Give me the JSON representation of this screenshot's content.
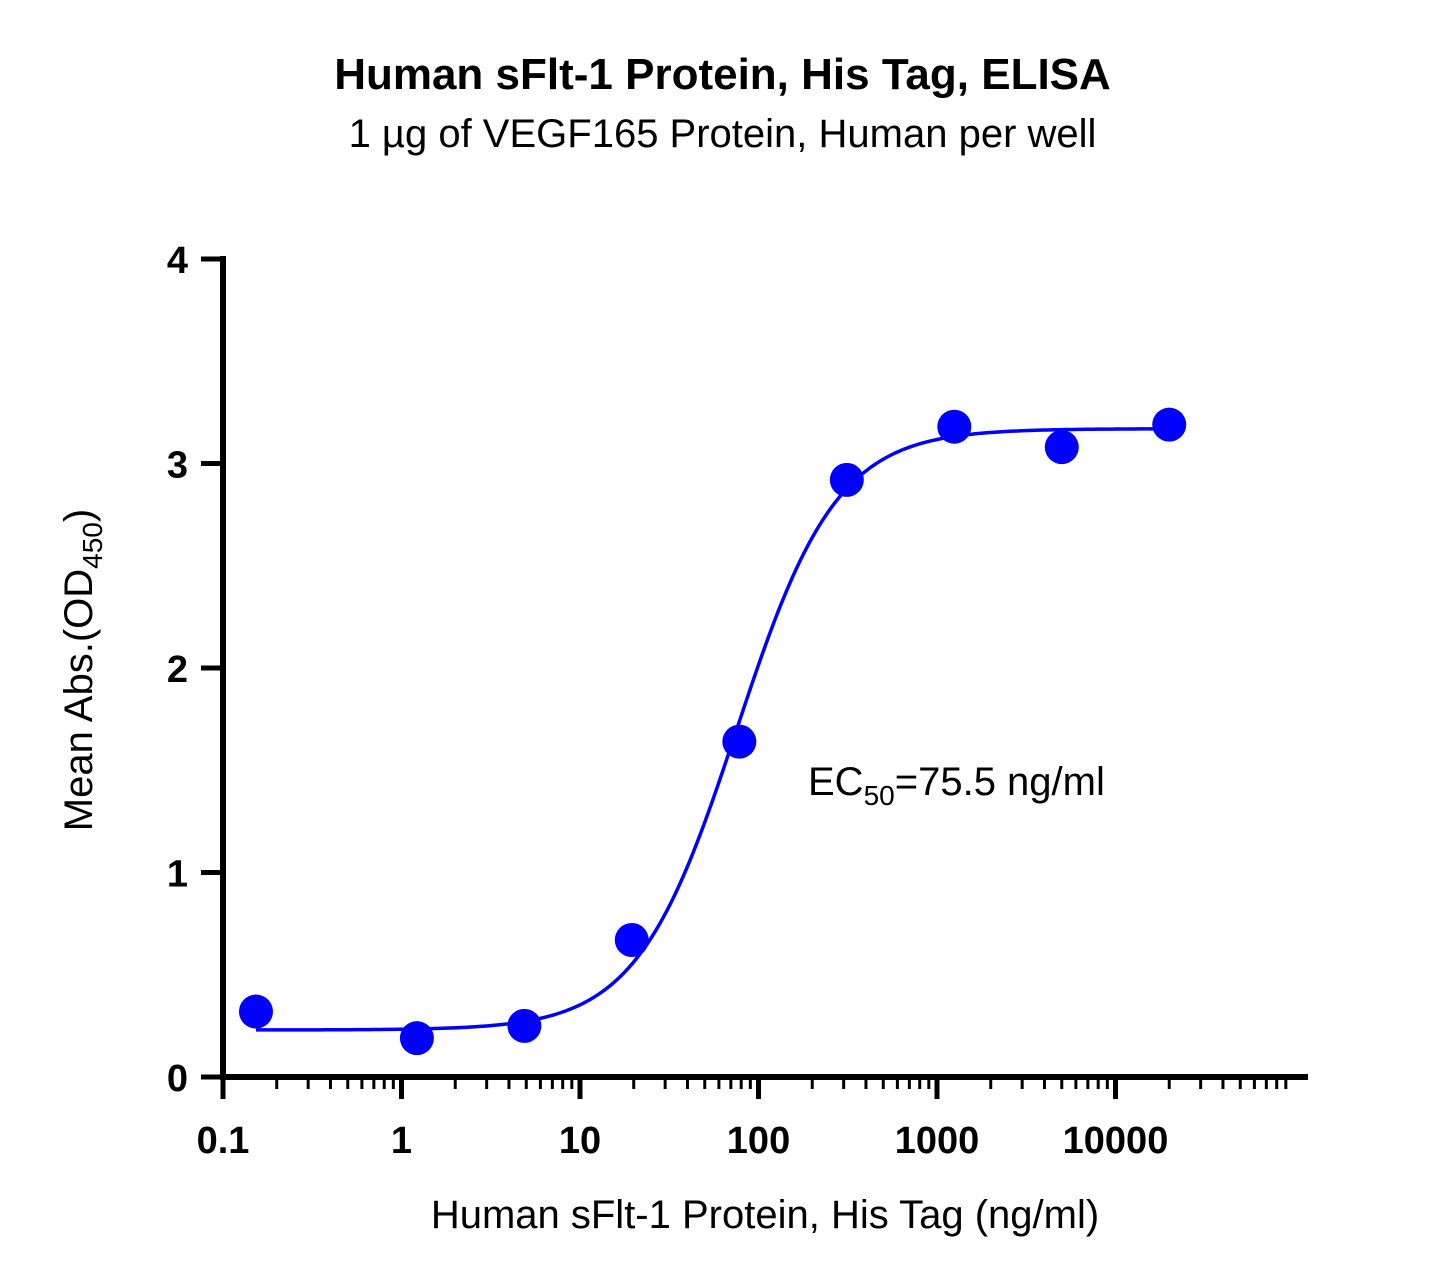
{
  "chart_data": {
    "type": "scatter",
    "title": "Human sFlt-1 Protein, His Tag, ELISA",
    "subtitle": "1 µg of VEGF165 Protein, Human per well",
    "xlabel": "Human sFlt-1 Protein, His Tag (ng/ml)",
    "ylabel": {
      "main": "Mean Abs.(OD",
      "sub": "450",
      "end": ")"
    },
    "x_scale": "log",
    "xlim": [
      0.1,
      100000
    ],
    "ylim": [
      0,
      4
    ],
    "x_ticks": [
      "0.1",
      "1",
      "10",
      "100",
      "1000",
      "10000"
    ],
    "x_tick_values": [
      0.1,
      1,
      10,
      100,
      1000,
      10000
    ],
    "y_ticks": [
      "0",
      "1",
      "2",
      "3",
      "4"
    ],
    "y_tick_values": [
      0,
      1,
      2,
      3,
      4
    ],
    "grid": false,
    "series": [
      {
        "color": "#0000ff",
        "points": [
          {
            "x": 0.153,
            "y": 0.32
          },
          {
            "x": 1.22,
            "y": 0.19
          },
          {
            "x": 4.88,
            "y": 0.25
          },
          {
            "x": 19.5,
            "y": 0.67
          },
          {
            "x": 78.1,
            "y": 1.64
          },
          {
            "x": 312.5,
            "y": 2.92
          },
          {
            "x": 1250,
            "y": 3.18
          },
          {
            "x": 5000,
            "y": 3.08
          },
          {
            "x": 20000,
            "y": 3.19
          }
        ],
        "fit": {
          "model": "4PL",
          "bottom": 0.23,
          "top": 3.17,
          "ec50": 75.5,
          "hill": 1.55
        }
      }
    ],
    "annotation": {
      "prefix": "EC",
      "sub": "50",
      "suffix": "=75.5 ng/ml"
    }
  }
}
